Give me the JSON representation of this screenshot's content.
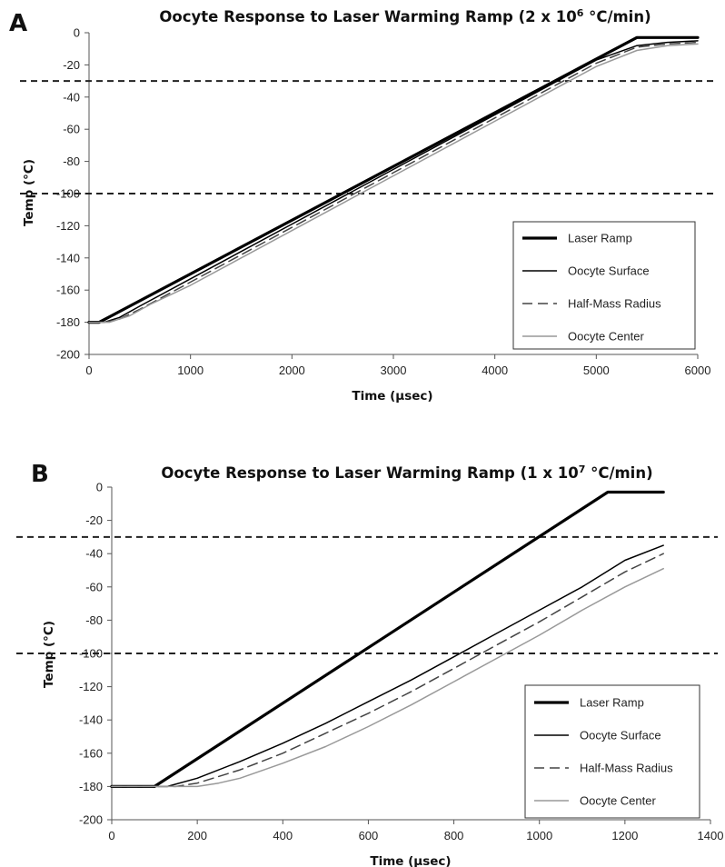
{
  "chart_data": [
    {
      "type": "line",
      "panel_label": "A",
      "title": "Oocyte Response to Laser Warming Ramp (2 x 10",
      "title_sup": "6",
      "title_suffix": " °C/min)",
      "xlabel": "Time (μsec)",
      "ylabel": "Temp (°C)",
      "xlim": [
        0,
        6000
      ],
      "ylim": [
        -200,
        0
      ],
      "xticks": [
        0,
        1000,
        2000,
        3000,
        4000,
        5000,
        6000
      ],
      "yticks": [
        0,
        -20,
        -40,
        -60,
        -80,
        -100,
        -120,
        -140,
        -160,
        -180,
        -200
      ],
      "xtick_labels": [
        "0",
        "1000",
        "2000",
        "3000",
        "4000",
        "5000",
        "6000"
      ],
      "ytick_labels": [
        "0",
        "-20",
        "-40",
        "-60",
        "-80",
        "-100",
        "-120",
        "-140",
        "-160",
        "-180",
        "-200"
      ],
      "reference_lines": [
        -30,
        -100
      ],
      "legend": "bottom-right",
      "series": [
        {
          "name": "Laser Ramp",
          "color": "#000000",
          "style": "thick",
          "x": [
            0,
            100,
            5400,
            6000
          ],
          "y": [
            -180,
            -180,
            -3,
            -3
          ]
        },
        {
          "name": "Oocyte Surface",
          "color": "#000000",
          "style": "solid",
          "x": [
            0,
            150,
            300,
            500,
            1000,
            2000,
            3000,
            4000,
            5000,
            5400,
            5700,
            6000
          ],
          "y": [
            -180,
            -180,
            -177,
            -170,
            -153,
            -119,
            -85,
            -51,
            -17,
            -8,
            -6,
            -5
          ]
        },
        {
          "name": "Half-Mass Radius",
          "color": "#444444",
          "style": "dashed",
          "x": [
            0,
            150,
            300,
            500,
            1000,
            2000,
            3000,
            4000,
            5000,
            5400,
            5700,
            6000
          ],
          "y": [
            -180,
            -180,
            -178,
            -172,
            -155,
            -121,
            -87,
            -53,
            -19,
            -9,
            -7,
            -6
          ]
        },
        {
          "name": "Oocyte Center",
          "color": "#999999",
          "style": "solid",
          "x": [
            0,
            200,
            400,
            600,
            1000,
            2000,
            3000,
            4000,
            5000,
            5400,
            5700,
            6000
          ],
          "y": [
            -180,
            -180,
            -176,
            -169,
            -157,
            -123,
            -89,
            -55,
            -21,
            -11,
            -8,
            -7
          ]
        }
      ]
    },
    {
      "type": "line",
      "panel_label": "B",
      "title": "Oocyte Response to Laser Warming Ramp (1 x 10",
      "title_sup": "7",
      "title_suffix": " °C/min)",
      "xlabel": "Time (μsec)",
      "ylabel": "Temp (°C)",
      "xlim": [
        0,
        1400
      ],
      "ylim": [
        -200,
        0
      ],
      "xticks": [
        0,
        200,
        400,
        600,
        800,
        1000,
        1200,
        1400
      ],
      "yticks": [
        0,
        -20,
        -40,
        -60,
        -80,
        -100,
        -120,
        -140,
        -160,
        -180,
        -200
      ],
      "xtick_labels": [
        "0",
        "200",
        "400",
        "600",
        "800",
        "1000",
        "1200",
        "1400"
      ],
      "ytick_labels": [
        "0",
        "-20",
        "-40",
        "-60",
        "-80",
        "-100",
        "-120",
        "-140",
        "-160",
        "-180",
        "-200"
      ],
      "reference_lines": [
        -30,
        -100
      ],
      "legend": "bottom-right",
      "series": [
        {
          "name": "Laser Ramp",
          "color": "#000000",
          "style": "thick",
          "x": [
            0,
            100,
            1160,
            1290
          ],
          "y": [
            -180,
            -180,
            -3,
            -3
          ]
        },
        {
          "name": "Oocyte Surface",
          "color": "#000000",
          "style": "solid",
          "x": [
            0,
            130,
            200,
            300,
            400,
            500,
            600,
            700,
            800,
            900,
            1000,
            1100,
            1200,
            1290
          ],
          "y": [
            -180,
            -180,
            -175,
            -165,
            -154,
            -142,
            -129,
            -116,
            -102,
            -88,
            -74,
            -60,
            -44,
            -35
          ]
        },
        {
          "name": "Half-Mass Radius",
          "color": "#444444",
          "style": "dashed",
          "x": [
            0,
            150,
            200,
            300,
            400,
            500,
            600,
            700,
            800,
            900,
            1000,
            1100,
            1200,
            1290
          ],
          "y": [
            -180,
            -180,
            -178,
            -170,
            -160,
            -148,
            -136,
            -123,
            -109,
            -95,
            -81,
            -66,
            -51,
            -40
          ]
        },
        {
          "name": "Oocyte Center",
          "color": "#999999",
          "style": "solid",
          "x": [
            0,
            200,
            250,
            300,
            400,
            500,
            600,
            700,
            800,
            900,
            1000,
            1100,
            1200,
            1290
          ],
          "y": [
            -180,
            -180,
            -178,
            -175,
            -166,
            -156,
            -144,
            -131,
            -117,
            -103,
            -89,
            -74,
            -60,
            -49
          ]
        }
      ]
    }
  ]
}
